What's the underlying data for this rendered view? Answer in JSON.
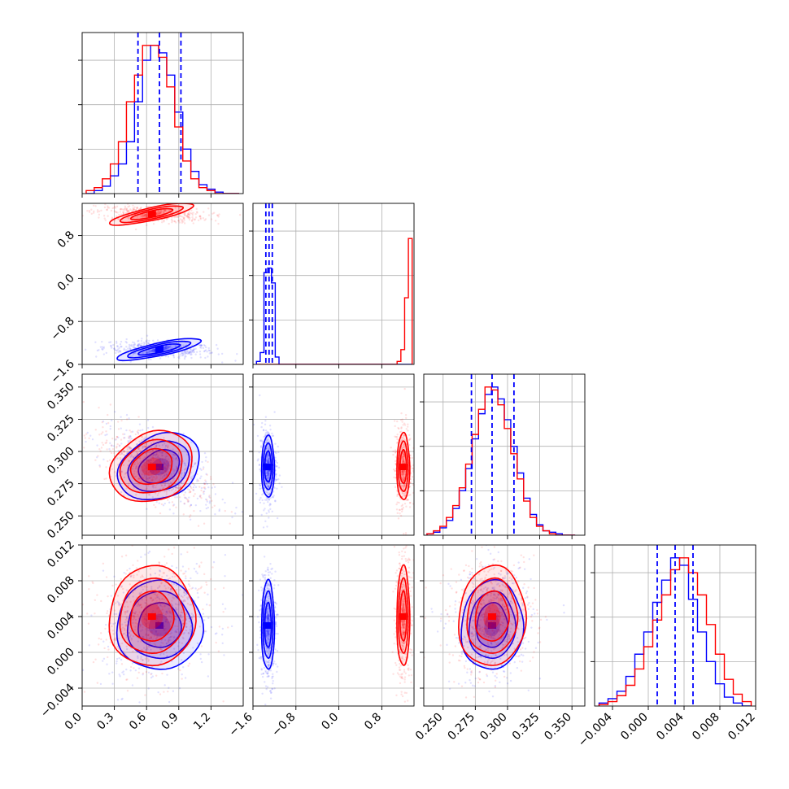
{
  "chart_data": {
    "type": "corner",
    "n_params": 4,
    "grid": true,
    "series": [
      {
        "color": "#0000ff",
        "style": "filled contours + step histograms"
      },
      {
        "color": "#ff0000",
        "style": "filled contours + step histograms"
      }
    ],
    "quantile_lines": {
      "color": "#0000ff",
      "style": "dashed",
      "series_color": "#0000ff"
    },
    "params": [
      {
        "range": [
          0.0,
          1.5
        ],
        "ticks": [
          0.0,
          0.3,
          0.6,
          0.9,
          1.2
        ],
        "tick_labels": [
          "0.0",
          "0.3",
          "0.6",
          "0.9",
          "1.2"
        ],
        "quantiles": [
          0.52,
          0.72,
          0.92
        ],
        "hist_x": [
          0.075,
          0.15,
          0.225,
          0.3,
          0.375,
          0.45,
          0.525,
          0.6,
          0.675,
          0.75,
          0.825,
          0.9,
          0.975,
          1.05,
          1.125,
          1.2,
          1.275,
          1.35,
          1.425
        ],
        "hist_blue": [
          0.0,
          0.02,
          0.05,
          0.12,
          0.2,
          0.35,
          0.62,
          0.9,
          1.0,
          0.95,
          0.8,
          0.55,
          0.3,
          0.15,
          0.06,
          0.03,
          0.01,
          0.0,
          0.0
        ],
        "hist_red": [
          0.02,
          0.04,
          0.1,
          0.2,
          0.35,
          0.62,
          0.8,
          1.0,
          1.0,
          0.92,
          0.72,
          0.45,
          0.22,
          0.1,
          0.04,
          0.02,
          0.0,
          0.0,
          0.0
        ],
        "mean_blue": 0.72,
        "sd_blue": 0.2,
        "mean_red": 0.65,
        "sd_red": 0.2
      },
      {
        "range": [
          -1.6,
          1.4
        ],
        "ticks": [
          -1.6,
          -0.8,
          0.0,
          0.8
        ],
        "tick_labels": [
          "−1.6",
          "−0.8",
          "0.0",
          "0.8"
        ],
        "quantiles": [
          -1.36,
          -1.3,
          -1.24
        ],
        "hist_x": [
          -1.5,
          -1.43,
          -1.36,
          -1.29,
          -1.22,
          -1.15,
          -1.08,
          1.05,
          1.12,
          1.19,
          1.26,
          1.33
        ],
        "hist_blue": [
          0.02,
          0.08,
          0.62,
          0.65,
          0.55,
          0.05,
          0.0,
          0.0,
          0.0,
          0.0,
          0.0,
          0.0
        ],
        "hist_red": [
          0.0,
          0.0,
          0.0,
          0.0,
          0.0,
          0.0,
          0.0,
          0.0,
          0.02,
          0.1,
          0.45,
          0.85
        ],
        "mean_blue": -1.32,
        "sd_blue": 0.06,
        "mean_red": 1.2,
        "sd_red": 0.06
      },
      {
        "range": [
          0.235,
          0.36
        ],
        "ticks": [
          0.25,
          0.275,
          0.3,
          0.325,
          0.35
        ],
        "tick_labels": [
          "0.250",
          "0.275",
          "0.300",
          "0.325",
          "0.350"
        ],
        "quantiles": [
          0.272,
          0.288,
          0.305
        ],
        "hist_x": [
          0.24,
          0.245,
          0.25,
          0.255,
          0.26,
          0.265,
          0.27,
          0.275,
          0.28,
          0.285,
          0.29,
          0.295,
          0.3,
          0.305,
          0.31,
          0.315,
          0.32,
          0.325,
          0.33,
          0.335,
          0.34,
          0.345,
          0.35
        ],
        "hist_blue": [
          0.01,
          0.02,
          0.05,
          0.1,
          0.18,
          0.3,
          0.45,
          0.65,
          0.82,
          0.95,
          1.0,
          0.92,
          0.78,
          0.6,
          0.42,
          0.25,
          0.14,
          0.07,
          0.03,
          0.02,
          0.01,
          0.0,
          0.0
        ],
        "hist_red": [
          0.01,
          0.03,
          0.06,
          0.12,
          0.2,
          0.32,
          0.48,
          0.68,
          0.85,
          1.0,
          0.98,
          0.88,
          0.72,
          0.55,
          0.38,
          0.23,
          0.12,
          0.06,
          0.03,
          0.01,
          0.0,
          0.0,
          0.0
        ],
        "mean_blue": 0.288,
        "sd_blue": 0.012,
        "mean_red": 0.288,
        "sd_red": 0.013
      },
      {
        "range": [
          -0.006,
          0.012
        ],
        "ticks": [
          -0.004,
          0.0,
          0.004,
          0.008,
          0.012
        ],
        "tick_labels": [
          "−0.004",
          "0.000",
          "0.004",
          "0.008",
          "0.012"
        ],
        "quantiles": [
          0.001,
          0.003,
          0.005
        ],
        "hist_x": [
          -0.005,
          -0.004,
          -0.003,
          -0.002,
          -0.001,
          0.0,
          0.001,
          0.002,
          0.003,
          0.004,
          0.005,
          0.006,
          0.007,
          0.008,
          0.009,
          0.01,
          0.011
        ],
        "hist_blue": [
          0.02,
          0.05,
          0.1,
          0.2,
          0.35,
          0.5,
          0.7,
          0.85,
          1.0,
          0.95,
          0.72,
          0.5,
          0.3,
          0.15,
          0.06,
          0.02,
          0.0
        ],
        "hist_red": [
          0.01,
          0.03,
          0.07,
          0.14,
          0.25,
          0.4,
          0.58,
          0.75,
          0.92,
          1.0,
          0.9,
          0.75,
          0.55,
          0.35,
          0.18,
          0.08,
          0.03
        ],
        "mean_blue": 0.003,
        "sd_blue": 0.0025,
        "mean_red": 0.004,
        "sd_red": 0.0028
      }
    ]
  }
}
